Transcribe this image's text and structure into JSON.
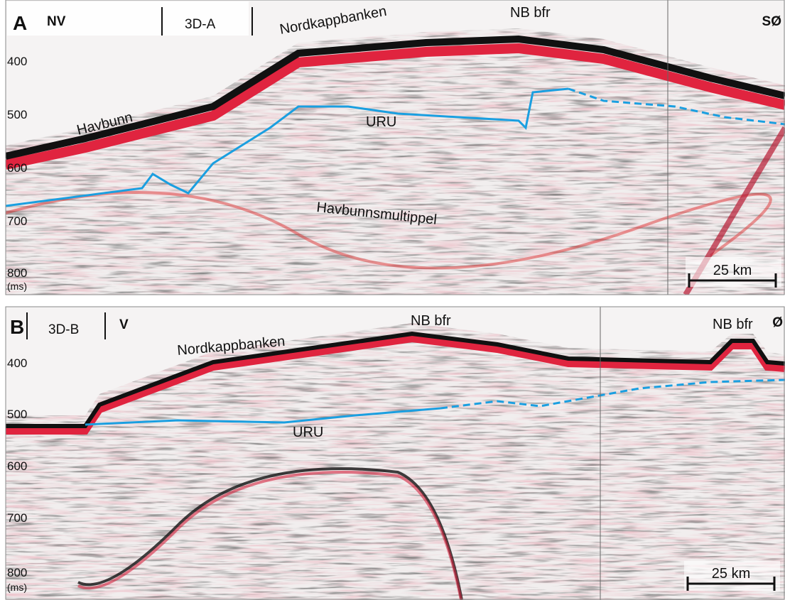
{
  "panels": [
    {
      "label": "A",
      "left_direction": "NV",
      "survey": "3D-A",
      "right_direction": "SØ",
      "annotations": {
        "bank": "Nordkappbanken",
        "bfr": "NB bfr",
        "seafloor": "Havbunn",
        "uru": "URU",
        "multiple": "Havbunnsmultippel"
      },
      "depth_ticks": [
        "400",
        "500",
        "600",
        "700",
        "800"
      ],
      "unit": "(ms)",
      "scale": "25 km"
    },
    {
      "label": "B",
      "survey": "3D-B",
      "left_direction": "V",
      "right_direction": "Ø",
      "annotations": {
        "bank": "Nordkappbanken",
        "bfr": "NB bfr",
        "bfr_right": "NB bfr",
        "uru": "URU"
      },
      "depth_ticks": [
        "400",
        "500",
        "600",
        "700",
        "800"
      ],
      "unit": "(ms)",
      "scale": "25 km"
    }
  ]
}
